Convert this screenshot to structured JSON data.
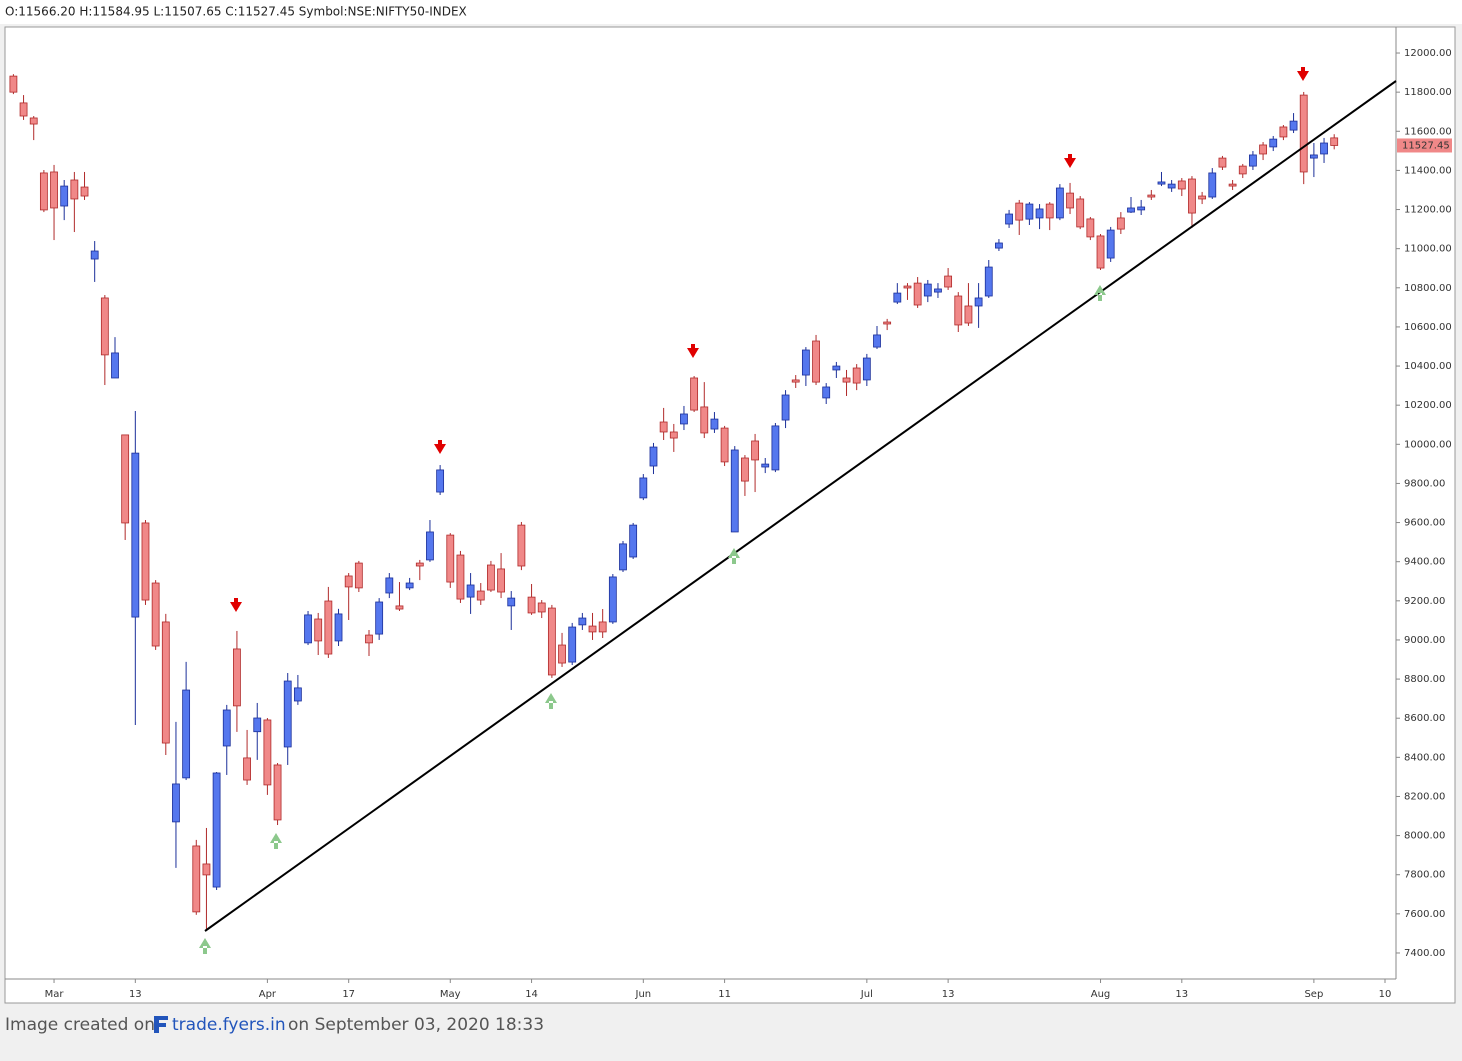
{
  "header": "O:11566.20 H:11584.95 L:11507.65 C:11527.45 Symbol:NSE:NIFTY50-INDEX",
  "footer": {
    "prefix": "Image created on",
    "site": "trade.fyers.in",
    "suffix": "on September 03, 2020 18:33"
  },
  "chart_data": {
    "type": "candlestick",
    "up_color": "#5577ee",
    "down_color": "#f08888",
    "ylim": [
      7267,
      12133
    ],
    "yticks": [
      {
        "value": 7400,
        "label": "7400.00"
      },
      {
        "value": 7600,
        "label": "7600.00"
      },
      {
        "value": 7800,
        "label": "7800.00"
      },
      {
        "value": 8000,
        "label": "8000.00"
      },
      {
        "value": 8200,
        "label": "8200.00"
      },
      {
        "value": 8400,
        "label": "8400.00"
      },
      {
        "value": 8600,
        "label": "8600.00"
      },
      {
        "value": 8800,
        "label": "8800.00"
      },
      {
        "value": 9000,
        "label": "9000.00"
      },
      {
        "value": 9200,
        "label": "9200.00"
      },
      {
        "value": 9400,
        "label": "9400.00"
      },
      {
        "value": 9600,
        "label": "9600.00"
      },
      {
        "value": 9800,
        "label": "9800.00"
      },
      {
        "value": 10000,
        "label": "10000.00"
      },
      {
        "value": 10200,
        "label": "10200.00"
      },
      {
        "value": 10400,
        "label": "10400.00"
      },
      {
        "value": 10600,
        "label": "10600.00"
      },
      {
        "value": 10800,
        "label": "10800.00"
      },
      {
        "value": 11000,
        "label": "11000.00"
      },
      {
        "value": 11200,
        "label": "11200.00"
      },
      {
        "value": 11400,
        "label": "11400.00"
      },
      {
        "value": 11600,
        "label": "11600.00"
      },
      {
        "value": 11800,
        "label": "11800.00"
      },
      {
        "value": 12000,
        "label": "12000.00"
      }
    ],
    "last_price": 11527.45,
    "categories": [
      null,
      null,
      null,
      null,
      "Mar",
      null,
      null,
      null,
      null,
      null,
      null,
      null,
      "13",
      null,
      null,
      null,
      null,
      null,
      null,
      null,
      null,
      null,
      null,
      null,
      null,
      "Apr",
      null,
      null,
      null,
      null,
      null,
      null,
      null,
      "17",
      null,
      null,
      null,
      null,
      null,
      null,
      null,
      null,
      null,
      "May",
      null,
      null,
      null,
      null,
      null,
      null,
      null,
      "14",
      null,
      null,
      null,
      null,
      null,
      null,
      null,
      null,
      null,
      null,
      "Jun",
      null,
      null,
      null,
      null,
      null,
      null,
      null,
      "11",
      null,
      null,
      null,
      null,
      null,
      null,
      null,
      null,
      null,
      null,
      null,
      null,
      null,
      "Jul",
      null,
      null,
      null,
      null,
      null,
      null,
      null,
      "13",
      null,
      null,
      null,
      null,
      null,
      null,
      null,
      null,
      null,
      null,
      null,
      null,
      null,
      null,
      "Aug",
      null,
      null,
      null,
      null,
      null,
      null,
      null,
      "13",
      null,
      null,
      null,
      null,
      null,
      null,
      null,
      null,
      null,
      null,
      null,
      null,
      "Sep",
      null,
      null,
      null,
      null,
      null,
      null,
      "10"
    ],
    "open": [
      11882,
      11745,
      11668,
      11387,
      11392,
      11218,
      11351,
      11315,
      10947,
      10748,
      10339,
      10048,
      9117,
      9598,
      9291,
      9092,
      8070,
      8295,
      7947,
      7855,
      7737,
      8458,
      8954,
      8397,
      8531,
      8591,
      8361,
      8453,
      8688,
      8985,
      9107,
      9199,
      8995,
      9327,
      9393,
      9025,
      9030,
      9240,
      9174,
      9266,
      9393,
      9409,
      9756,
      9536,
      9434,
      9219,
      9250,
      9383,
      9363,
      9174,
      9587,
      9219,
      9189,
      9163,
      8974,
      8887,
      9077,
      9071,
      9092,
      9092,
      9358,
      9424,
      9726,
      9889,
      10114,
      10063,
      10104,
      10339,
      10191,
      10078,
      10083,
      9552,
      9930,
      10017,
      9884,
      9869,
      10124,
      10329,
      10354,
      10528,
      10237,
      10380,
      10339,
      10390,
      10329,
      10497,
      10625,
      10727,
      10809,
      10824,
      10758,
      10778,
      10860,
      10758,
      10707,
      10707,
      10758,
      11003,
      11126,
      11233,
      11151,
      11157,
      11228,
      11157,
      11284,
      11254,
      11152,
      11065,
      10952,
      11157,
      11187,
      11198,
      11274,
      11330,
      11310,
      11346,
      11356,
      11269,
      11264,
      11463,
      11330,
      11422,
      11422,
      11530,
      11520,
      11622,
      11606,
      11785,
      11463,
      11484,
      11566.2,
      null,
      null,
      null,
      null,
      null
    ],
    "high": [
      11892,
      11785,
      11678,
      11402,
      11428,
      11351,
      11392,
      11392,
      11039,
      10763,
      10548,
      10048,
      10170,
      9613,
      9306,
      9133,
      8581,
      8888,
      7978,
      8039,
      8325,
      8668,
      9046,
      8540,
      8678,
      8601,
      8371,
      8831,
      8821,
      9148,
      9138,
      9271,
      9159,
      9342,
      9404,
      9051,
      9214,
      9342,
      9296,
      9317,
      9409,
      9613,
      9894,
      9546,
      9455,
      9342,
      9291,
      9404,
      9444,
      9250,
      9603,
      9286,
      9204,
      9179,
      9036,
      9087,
      9138,
      9138,
      9158,
      9337,
      9506,
      9598,
      9848,
      10007,
      10186,
      10104,
      10196,
      10349,
      10318,
      10165,
      10094,
      9991,
      9945,
      10053,
      9930,
      10109,
      10277,
      10354,
      10497,
      10559,
      10313,
      10421,
      10380,
      10410,
      10462,
      10605,
      10641,
      10824,
      10824,
      10855,
      10840,
      10824,
      10901,
      10778,
      10824,
      10824,
      10942,
      11049,
      11198,
      11249,
      11238,
      11228,
      11238,
      11330,
      11336,
      11269,
      11162,
      11075,
      11111,
      11187,
      11264,
      11249,
      11300,
      11392,
      11351,
      11361,
      11371,
      11290,
      11412,
      11474,
      11351,
      11433,
      11499,
      11545,
      11576,
      11632,
      11693,
      11801,
      11540,
      11566,
      11584.95,
      null,
      null,
      null,
      null,
      null
    ],
    "low": [
      11790,
      11658,
      11555,
      11187,
      11044,
      11146,
      11085,
      11249,
      10830,
      10303,
      10339,
      9511,
      8565,
      9179,
      8949,
      8412,
      7835,
      8284,
      7595,
      7518,
      7722,
      8310,
      8530,
      8259,
      8387,
      8208,
      8054,
      8361,
      8668,
      8974,
      8923,
      8908,
      8969,
      9102,
      9245,
      8918,
      9000,
      9214,
      9148,
      9255,
      9306,
      9399,
      9741,
      9266,
      9189,
      9133,
      9179,
      9245,
      9214,
      9051,
      9357,
      9128,
      9112,
      8806,
      8862,
      8872,
      9051,
      9000,
      9010,
      9082,
      9347,
      9414,
      9715,
      9848,
      10022,
      9961,
      10073,
      10165,
      10032,
      10058,
      9889,
      9552,
      9736,
      9756,
      9853,
      9858,
      10083,
      10288,
      10298,
      10303,
      10206,
      10339,
      10247,
      10277,
      10298,
      10487,
      10584,
      10717,
      10738,
      10697,
      10727,
      10748,
      10789,
      10574,
      10605,
      10595,
      10748,
      10988,
      11106,
      11070,
      11121,
      11100,
      11095,
      11146,
      11177,
      11100,
      11044,
      10891,
      10932,
      11075,
      11182,
      11172,
      11249,
      11320,
      11290,
      11269,
      11106,
      11228,
      11254,
      11402,
      11300,
      11361,
      11402,
      11453,
      11499,
      11555,
      11591,
      11330,
      11366,
      11438,
      11507.65,
      null,
      null,
      null,
      null,
      null
    ],
    "close": [
      11800,
      11678,
      11637,
      11198,
      11208,
      11320,
      11254,
      11269,
      10988,
      10457,
      10467,
      9598,
      9955,
      9204,
      8969,
      8473,
      8264,
      8744,
      7610,
      7799,
      8320,
      8642,
      8663,
      8284,
      8601,
      8259,
      8080,
      8790,
      8755,
      9128,
      8995,
      8928,
      9133,
      9271,
      9266,
      8985,
      9194,
      9317,
      9158,
      9291,
      9378,
      9552,
      9869,
      9296,
      9209,
      9281,
      9204,
      9255,
      9245,
      9214,
      9378,
      9138,
      9143,
      8821,
      8882,
      9066,
      9112,
      9041,
      9041,
      9322,
      9491,
      9587,
      9828,
      9986,
      10063,
      10032,
      10155,
      10175,
      10058,
      10129,
      9910,
      9971,
      9812,
      9920,
      9899,
      10094,
      10252,
      10318,
      10482,
      10318,
      10293,
      10400,
      10318,
      10313,
      10441,
      10559,
      10615,
      10773,
      10799,
      10712,
      10819,
      10794,
      10804,
      10610,
      10620,
      10748,
      10906,
      11029,
      11177,
      11146,
      11228,
      11203,
      11157,
      11310,
      11208,
      11111,
      11060,
      10901,
      11095,
      11100,
      11208,
      11213,
      11264,
      11341,
      11330,
      11305,
      11182,
      11254,
      11387,
      11417,
      11320,
      11382,
      11479,
      11484,
      11560,
      11571,
      11652,
      11392,
      11479,
      11540,
      11527.45,
      null,
      null,
      null,
      null,
      null
    ]
  }
}
